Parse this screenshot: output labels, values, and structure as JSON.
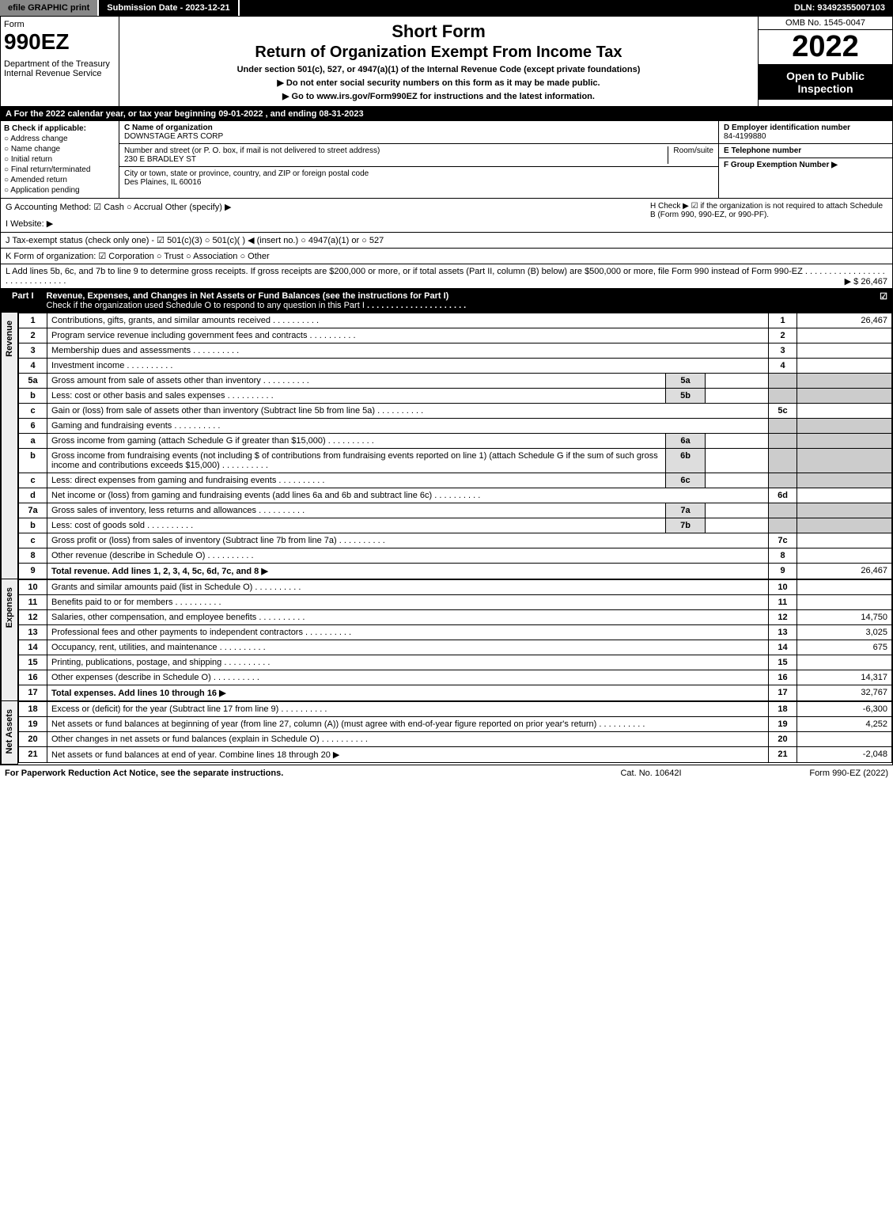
{
  "topbar": {
    "efile": "efile GRAPHIC print",
    "submission": "Submission Date - 2023-12-21",
    "dln": "DLN: 93492355007103"
  },
  "header": {
    "form_word": "Form",
    "form_no": "990EZ",
    "dept": "Department of the Treasury\nInternal Revenue Service",
    "short": "Short Form",
    "return": "Return of Organization Exempt From Income Tax",
    "under": "Under section 501(c), 527, or 4947(a)(1) of the Internal Revenue Code (except private foundations)",
    "no_ssn": "▶ Do not enter social security numbers on this form as it may be made public.",
    "goto": "▶ Go to www.irs.gov/Form990EZ for instructions and the latest information.",
    "omb": "OMB No. 1545-0047",
    "year": "2022",
    "open": "Open to Public Inspection"
  },
  "rowA": "A  For the 2022 calendar year, or tax year beginning 09-01-2022 , and ending 08-31-2023",
  "colB": {
    "title": "B  Check if applicable:",
    "items": [
      "Address change",
      "Name change",
      "Initial return",
      "Final return/terminated",
      "Amended return",
      "Application pending"
    ]
  },
  "colC": {
    "name_lbl": "C Name of organization",
    "name": "DOWNSTAGE ARTS CORP",
    "street_lbl": "Number and street (or P. O. box, if mail is not delivered to street address)",
    "street": "230 E BRADLEY ST",
    "room_lbl": "Room/suite",
    "city_lbl": "City or town, state or province, country, and ZIP or foreign postal code",
    "city": "Des Plaines, IL  60016"
  },
  "colD": {
    "ein_lbl": "D Employer identification number",
    "ein": "84-4199880",
    "tel_lbl": "E Telephone number",
    "tel": "",
    "group_lbl": "F Group Exemption Number   ▶",
    "group": ""
  },
  "g": "G Accounting Method:   ☑ Cash  ○ Accrual   Other (specify) ▶",
  "h": "H  Check ▶ ☑ if the organization is not required to attach Schedule B (Form 990, 990-EZ, or 990-PF).",
  "i": "I Website: ▶",
  "j": "J Tax-exempt status (check only one) - ☑ 501(c)(3) ○ 501(c)(  ) ◀ (insert no.) ○ 4947(a)(1) or ○ 527",
  "k": "K Form of organization:  ☑ Corporation  ○ Trust  ○ Association  ○ Other",
  "l": {
    "text": "L Add lines 5b, 6c, and 7b to line 9 to determine gross receipts. If gross receipts are $200,000 or more, or if total assets (Part II, column (B) below) are $500,000 or more, file Form 990 instead of Form 990-EZ",
    "amount": "▶ $ 26,467"
  },
  "part1": {
    "no": "Part I",
    "title": "Revenue, Expenses, and Changes in Net Assets or Fund Balances (see the instructions for Part I)",
    "check": "Check if the organization used Schedule O to respond to any question in this Part I",
    "checked": "☑"
  },
  "sections": {
    "revenue": "Revenue",
    "expenses": "Expenses",
    "netassets": "Net Assets"
  },
  "rows": [
    {
      "no": "1",
      "desc": "Contributions, gifts, grants, and similar amounts received",
      "rno": "1",
      "rval": "26,467"
    },
    {
      "no": "2",
      "desc": "Program service revenue including government fees and contracts",
      "rno": "2",
      "rval": ""
    },
    {
      "no": "3",
      "desc": "Membership dues and assessments",
      "rno": "3",
      "rval": ""
    },
    {
      "no": "4",
      "desc": "Investment income",
      "rno": "4",
      "rval": ""
    },
    {
      "no": "5a",
      "desc": "Gross amount from sale of assets other than inventory",
      "sub": "5a",
      "subv": "",
      "grey": true
    },
    {
      "no": "b",
      "desc": "Less: cost or other basis and sales expenses",
      "sub": "5b",
      "subv": "",
      "grey": true
    },
    {
      "no": "c",
      "desc": "Gain or (loss) from sale of assets other than inventory (Subtract line 5b from line 5a)",
      "rno": "5c",
      "rval": ""
    },
    {
      "no": "6",
      "desc": "Gaming and fundraising events",
      "grey": true,
      "noval": true
    },
    {
      "no": "a",
      "desc": "Gross income from gaming (attach Schedule G if greater than $15,000)",
      "sub": "6a",
      "subv": "",
      "grey": true
    },
    {
      "no": "b",
      "desc": "Gross income from fundraising events (not including $                    of contributions from fundraising events reported on line 1) (attach Schedule G if the sum of such gross income and contributions exceeds $15,000)",
      "sub": "6b",
      "subv": "",
      "grey": true
    },
    {
      "no": "c",
      "desc": "Less: direct expenses from gaming and fundraising events",
      "sub": "6c",
      "subv": "",
      "grey": true
    },
    {
      "no": "d",
      "desc": "Net income or (loss) from gaming and fundraising events (add lines 6a and 6b and subtract line 6c)",
      "rno": "6d",
      "rval": ""
    },
    {
      "no": "7a",
      "desc": "Gross sales of inventory, less returns and allowances",
      "sub": "7a",
      "subv": "",
      "grey": true
    },
    {
      "no": "b",
      "desc": "Less: cost of goods sold",
      "sub": "7b",
      "subv": "",
      "grey": true
    },
    {
      "no": "c",
      "desc": "Gross profit or (loss) from sales of inventory (Subtract line 7b from line 7a)",
      "rno": "7c",
      "rval": ""
    },
    {
      "no": "8",
      "desc": "Other revenue (describe in Schedule O)",
      "rno": "8",
      "rval": ""
    },
    {
      "no": "9",
      "desc": "Total revenue. Add lines 1, 2, 3, 4, 5c, 6d, 7c, and 8",
      "rno": "9",
      "rval": "26,467",
      "bold": true,
      "arrow": true
    }
  ],
  "exp_rows": [
    {
      "no": "10",
      "desc": "Grants and similar amounts paid (list in Schedule O)",
      "rno": "10",
      "rval": ""
    },
    {
      "no": "11",
      "desc": "Benefits paid to or for members",
      "rno": "11",
      "rval": ""
    },
    {
      "no": "12",
      "desc": "Salaries, other compensation, and employee benefits",
      "rno": "12",
      "rval": "14,750"
    },
    {
      "no": "13",
      "desc": "Professional fees and other payments to independent contractors",
      "rno": "13",
      "rval": "3,025"
    },
    {
      "no": "14",
      "desc": "Occupancy, rent, utilities, and maintenance",
      "rno": "14",
      "rval": "675"
    },
    {
      "no": "15",
      "desc": "Printing, publications, postage, and shipping",
      "rno": "15",
      "rval": ""
    },
    {
      "no": "16",
      "desc": "Other expenses (describe in Schedule O)",
      "rno": "16",
      "rval": "14,317"
    },
    {
      "no": "17",
      "desc": "Total expenses. Add lines 10 through 16",
      "rno": "17",
      "rval": "32,767",
      "bold": true,
      "arrow": true
    }
  ],
  "na_rows": [
    {
      "no": "18",
      "desc": "Excess or (deficit) for the year (Subtract line 17 from line 9)",
      "rno": "18",
      "rval": "-6,300"
    },
    {
      "no": "19",
      "desc": "Net assets or fund balances at beginning of year (from line 27, column (A)) (must agree with end-of-year figure reported on prior year's return)",
      "rno": "19",
      "rval": "4,252"
    },
    {
      "no": "20",
      "desc": "Other changes in net assets or fund balances (explain in Schedule O)",
      "rno": "20",
      "rval": ""
    },
    {
      "no": "21",
      "desc": "Net assets or fund balances at end of year. Combine lines 18 through 20",
      "rno": "21",
      "rval": "-2,048",
      "arrow": true
    }
  ],
  "footer": {
    "f1": "For Paperwork Reduction Act Notice, see the separate instructions.",
    "f2": "Cat. No. 10642I",
    "f3": "Form 990-EZ (2022)"
  }
}
